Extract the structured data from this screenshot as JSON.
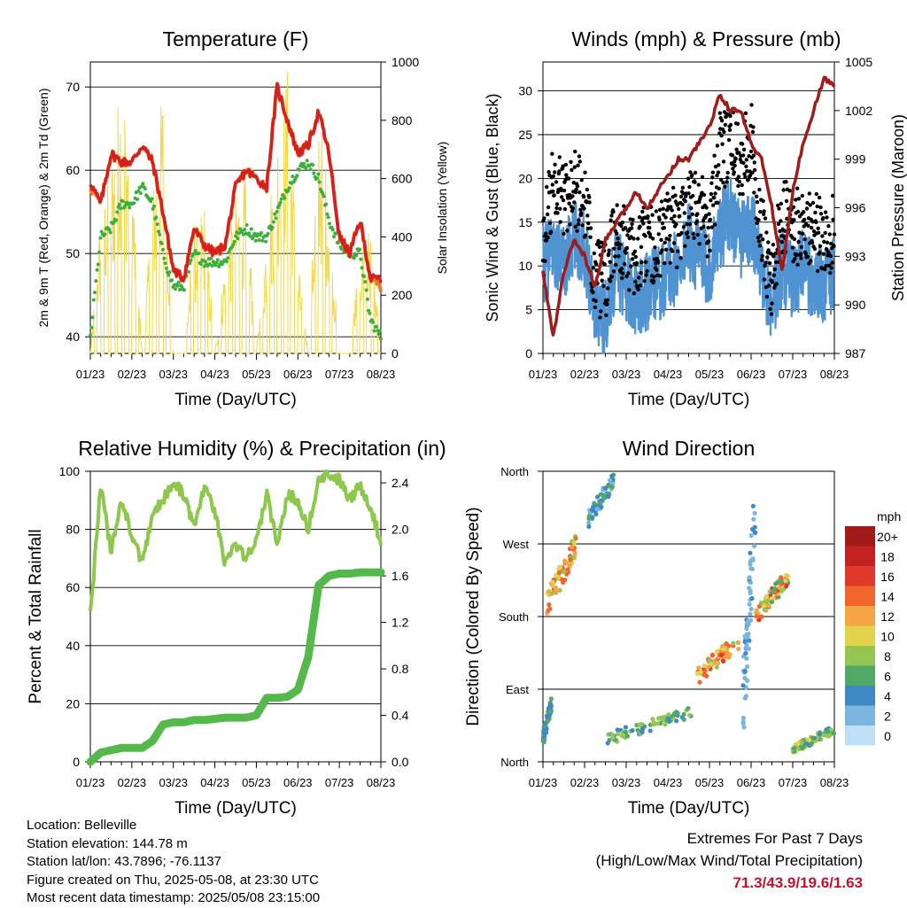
{
  "colors": {
    "temp2m": "#d62020",
    "temp9m": "#f07a2a",
    "dew": "#3cb03c",
    "solar": "#f5d84a",
    "gust": "#000000",
    "wind": "#4f93d2",
    "pressure": "#a01c1c",
    "rh": "#8cc84b",
    "rain": "#55b84a"
  },
  "x_tick_labels": [
    "01/23",
    "02/23",
    "03/23",
    "04/23",
    "05/23",
    "06/23",
    "07/23",
    "08/23"
  ],
  "info": {
    "location": "Location: Belleville",
    "elevation": "Station elevation: 144.78 m",
    "latlon": "Station lat/lon: 43.7896; -76.1137",
    "created": "Figure created on Thu, 2025-05-08, at 23:30 UTC",
    "recent": "Most recent data timestamp: 2025/05/08 23:15:00"
  },
  "extremes": {
    "title": "Extremes For Past 7 Days",
    "subtitle": "(High/Low/Max Wind/Total Precipitation)",
    "values": "71.3/43.9/19.6/1.63"
  },
  "chart_data": [
    {
      "type": "line",
      "title": "Temperature (F)",
      "xlabel": "Time (Day/UTC)",
      "ylabel": "2m & 9m T (Red, Orange) & 2m Td (Green)",
      "y2label": "Solar Insolation (Yellow)",
      "ylim": [
        38,
        73
      ],
      "y2lim": [
        0,
        1000
      ],
      "yticks": [
        "40",
        "50",
        "60",
        "70"
      ],
      "y2ticks": [
        "0",
        "200",
        "400",
        "600",
        "800",
        "1000"
      ],
      "x": [
        0,
        0.25,
        0.5,
        0.75,
        1,
        1.25,
        1.5,
        1.75,
        2,
        2.25,
        2.5,
        2.75,
        3,
        3.25,
        3.5,
        3.75,
        4,
        4.25,
        4.5,
        4.75,
        5,
        5.25,
        5.5,
        5.75,
        6,
        6.25,
        6.5,
        6.75,
        7
      ],
      "series": [
        {
          "name": "T2m",
          "values": [
            58.5,
            56,
            62,
            61,
            61,
            63,
            61,
            55,
            48,
            47,
            53,
            51,
            50,
            51,
            58,
            60,
            59,
            58,
            70,
            66,
            62,
            63,
            67,
            62,
            52,
            50,
            54,
            47,
            47
          ]
        },
        {
          "name": "T9m",
          "values": [
            58,
            56,
            62,
            61,
            61,
            63,
            61,
            55,
            48,
            47,
            53,
            51,
            50,
            51,
            58,
            60,
            59,
            58,
            70,
            66,
            62,
            63,
            67,
            62,
            52,
            50,
            54,
            47,
            46
          ]
        },
        {
          "name": "Td2m",
          "values": [
            40,
            52,
            53,
            56,
            56,
            58,
            56,
            50,
            46,
            46,
            50,
            49,
            49,
            49,
            52,
            53,
            52,
            52,
            55,
            58,
            60,
            61,
            59,
            54,
            51,
            50,
            50,
            42,
            40
          ]
        },
        {
          "name": "Solar",
          "values": [
            0,
            450,
            600,
            900,
            600,
            0,
            500,
            850,
            0,
            0,
            400,
            480,
            0,
            300,
            500,
            560,
            0,
            400,
            700,
            900,
            300,
            0,
            800,
            500,
            0,
            0,
            350,
            400,
            0
          ]
        }
      ]
    },
    {
      "type": "line",
      "title": "Winds (mph) & Pressure (mb)",
      "xlabel": "Time (Day/UTC)",
      "ylabel": "Sonic Wind & Gust (Blue, Black)",
      "y2label": "Station Pressure (Maroon)",
      "ylim": [
        0,
        33.3
      ],
      "y2lim": [
        987,
        1005
      ],
      "yticks": [
        "0",
        "5",
        "10",
        "15",
        "20",
        "25",
        "30"
      ],
      "y2ticks": [
        "987",
        "990",
        "993",
        "996",
        "999",
        "1002",
        "1005"
      ],
      "x": [
        0,
        0.25,
        0.5,
        0.75,
        1,
        1.25,
        1.5,
        1.75,
        2,
        2.25,
        2.5,
        2.75,
        3,
        3.25,
        3.5,
        3.75,
        4,
        4.25,
        4.5,
        4.75,
        5,
        5.25,
        5.5,
        5.75,
        6,
        6.25,
        6.5,
        6.75,
        7
      ],
      "series": [
        {
          "name": "Wind",
          "values": [
            10,
            12,
            10,
            13,
            12,
            6,
            4,
            10,
            8,
            6,
            7,
            8,
            9,
            10,
            13,
            11,
            10,
            14,
            16,
            13,
            15,
            9,
            6,
            10,
            8,
            10,
            8,
            8,
            9
          ]
        },
        {
          "name": "Gust",
          "values": [
            12,
            20,
            18,
            19,
            17,
            9,
            8,
            14,
            12,
            11,
            13,
            12,
            15,
            14,
            18,
            17,
            15,
            23,
            24,
            22,
            25,
            14,
            8,
            16,
            14,
            15,
            14,
            13,
            14
          ]
        },
        {
          "name": "Pressure",
          "values": [
            992,
            988,
            992,
            994,
            993,
            991,
            994,
            995,
            996,
            997,
            996,
            997,
            998,
            999,
            999,
            1000,
            1001,
            1003,
            1002,
            1002,
            1000,
            999,
            996,
            992,
            997,
            1000,
            1002,
            1004,
            1003.5
          ]
        }
      ]
    },
    {
      "type": "line",
      "title": "Relative Humidity (%) & Precipitation (in)",
      "xlabel": "Time (Day/UTC)",
      "ylabel": "Percent & Total Rainfall",
      "ylim": [
        0,
        100
      ],
      "y2lim": [
        0,
        2.5
      ],
      "yticks": [
        "0",
        "20",
        "40",
        "60",
        "80",
        "100"
      ],
      "y2ticks": [
        "0.0",
        "0.4",
        "0.8",
        "1.2",
        "1.6",
        "2.0",
        "2.4"
      ],
      "x": [
        0,
        0.25,
        0.5,
        0.75,
        1,
        1.25,
        1.5,
        1.75,
        2,
        2.25,
        2.5,
        2.75,
        3,
        3.25,
        3.5,
        3.75,
        4,
        4.25,
        4.5,
        4.75,
        5,
        5.25,
        5.5,
        5.75,
        6,
        6.25,
        6.5,
        6.75,
        7
      ],
      "series": [
        {
          "name": "RH",
          "values": [
            50,
            95,
            72,
            90,
            78,
            68,
            85,
            90,
            96,
            92,
            80,
            94,
            86,
            68,
            75,
            70,
            76,
            92,
            75,
            92,
            90,
            80,
            98,
            99,
            97,
            90,
            95,
            88,
            75
          ]
        },
        {
          "name": "Precip",
          "values": [
            0,
            0.08,
            0.1,
            0.12,
            0.12,
            0.12,
            0.18,
            0.32,
            0.34,
            0.34,
            0.36,
            0.36,
            0.37,
            0.38,
            0.38,
            0.38,
            0.4,
            0.55,
            0.55,
            0.56,
            0.62,
            0.9,
            1.52,
            1.6,
            1.62,
            1.62,
            1.63,
            1.63,
            1.63
          ]
        }
      ]
    },
    {
      "type": "scatter",
      "title": "Wind Direction",
      "xlabel": "Time (Day/UTC)",
      "ylabel": "Direction (Colored By Speed)",
      "ytick_labels": [
        "North",
        "East",
        "South",
        "West",
        "North"
      ],
      "colorbar_title": "mph",
      "colorbar_labels": [
        "20+",
        "18",
        "16",
        "14",
        "12",
        "10",
        "8",
        "6",
        "4",
        "2",
        "0"
      ],
      "colorbar_colors": [
        "#a01a1a",
        "#c42222",
        "#e03a2a",
        "#f0662d",
        "#f5a545",
        "#e3d24c",
        "#94c651",
        "#52a866",
        "#3f88c4",
        "#7bb6e1",
        "#bfe1f5"
      ],
      "clusters": [
        {
          "t": [
            0.0,
            0.2
          ],
          "dir": [
            20,
            80
          ],
          "speed": [
            3,
            7
          ]
        },
        {
          "t": [
            0.1,
            0.8
          ],
          "dir": [
            180,
            285
          ],
          "speed": [
            8,
            15
          ]
        },
        {
          "t": [
            1.1,
            1.7
          ],
          "dir": [
            290,
            360
          ],
          "speed": [
            2,
            6
          ]
        },
        {
          "t": [
            1.5,
            3.6
          ],
          "dir": [
            20,
            70
          ],
          "speed": [
            3,
            9
          ]
        },
        {
          "t": [
            3.7,
            4.8
          ],
          "dir": [
            95,
            165
          ],
          "speed": [
            8,
            16
          ]
        },
        {
          "t": [
            4.8,
            5.1
          ],
          "dir": [
            10,
            360
          ],
          "speed": [
            1,
            4
          ]
        },
        {
          "t": [
            5.1,
            5.9
          ],
          "dir": [
            170,
            240
          ],
          "speed": [
            6,
            17
          ]
        },
        {
          "t": [
            6.0,
            7.0
          ],
          "dir": [
            10,
            45
          ],
          "speed": [
            4,
            10
          ]
        }
      ]
    }
  ]
}
